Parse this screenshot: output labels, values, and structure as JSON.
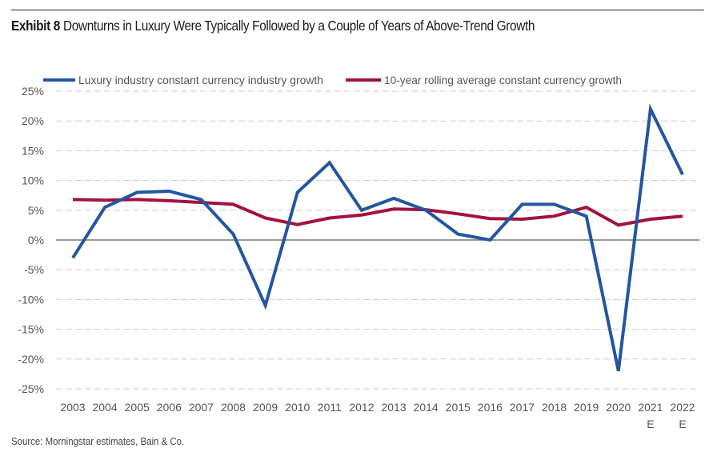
{
  "header": {
    "exhibit_label": "Exhibit 8",
    "title": "Downturns in Luxury Were Typically Followed by a Couple of Years of Above-Trend Growth"
  },
  "footer": {
    "source": "Source: Morningstar estimates, Bain & Co."
  },
  "chart_data": {
    "type": "line",
    "title": "Downturns in Luxury Were Typically Followed by a Couple of Years of Above-Trend Growth",
    "xlabel": "",
    "ylabel": "",
    "categories": [
      "2003",
      "2004",
      "2005",
      "2006",
      "2007",
      "2008",
      "2009",
      "2010",
      "2011",
      "2012",
      "2013",
      "2014",
      "2015",
      "2016",
      "2017",
      "2018",
      "2019",
      "2020",
      "2021",
      "2022"
    ],
    "category_sublabels": [
      "",
      "",
      "",
      "",
      "",
      "",
      "",
      "",
      "",
      "",
      "",
      "",
      "",
      "",
      "",
      "",
      "",
      "",
      "E",
      "E"
    ],
    "ylim": [
      -25,
      25
    ],
    "yticks": [
      25,
      20,
      15,
      10,
      5,
      0,
      -5,
      -10,
      -15,
      -20,
      -25
    ],
    "ytick_labels": [
      "25%",
      "20%",
      "15%",
      "10%",
      "5%",
      "0%",
      "-5%",
      "-10%",
      "-15%",
      "-20%",
      "-25%"
    ],
    "grid": "horizontal dashed",
    "legend_position": "top",
    "series": [
      {
        "name": "Luxury industry constant currency industry growth",
        "color": "#2456a0",
        "values": [
          -3,
          5.5,
          8,
          8.2,
          6.8,
          1,
          -11,
          8,
          13,
          5,
          7,
          5,
          1,
          0,
          6,
          6,
          4,
          -22,
          22,
          11
        ]
      },
      {
        "name": "10-year rolling average constant currency growth",
        "color": "#a3123f",
        "values": [
          6.8,
          6.7,
          6.8,
          6.6,
          6.3,
          6,
          3.7,
          2.6,
          3.7,
          4.2,
          5.2,
          5.1,
          4.4,
          3.6,
          3.5,
          4,
          5.5,
          2.5,
          3.5,
          4
        ]
      }
    ]
  }
}
